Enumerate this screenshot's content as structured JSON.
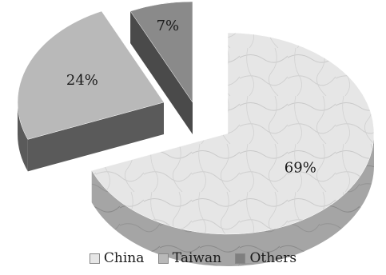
{
  "chart_data": {
    "type": "pie",
    "style": "3d-exploded",
    "categories": [
      "China",
      "Taiwan",
      "Others"
    ],
    "values": [
      69,
      24,
      7
    ],
    "labels": [
      "69%",
      "24%",
      "7%"
    ],
    "colors": {
      "China": "#dcdcdc",
      "Taiwan": "#b9b9b9",
      "Others": "#7f7f7f"
    },
    "side_colors": {
      "China": "#9a9a9a",
      "Taiwan": "#5a5a5a",
      "Others": "#4a4a4a"
    },
    "legend_position": "bottom",
    "title": ""
  }
}
